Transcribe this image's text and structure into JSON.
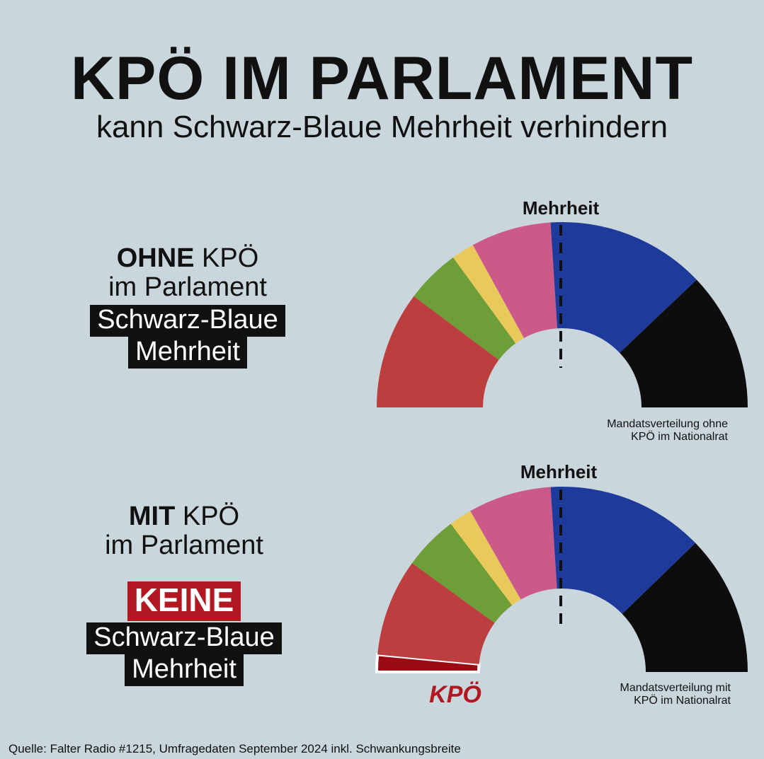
{
  "header": {
    "title": "KPÖ IM PARLAMENT",
    "subtitle": "kann Schwarz-Blaue Mehrheit verhindern"
  },
  "panel_top": {
    "line1_bold": "OHNE",
    "line1_rest": " KPÖ",
    "line2": "im Parlament",
    "box_line1": "Schwarz-Blaue",
    "box_line2": "Mehrheit",
    "majority_label": "Mehrheit",
    "caption_line1": "Mandatsverteilung ohne",
    "caption_line2": "KPÖ im Nationalrat"
  },
  "panel_bottom": {
    "line1_bold": "MIT",
    "line1_rest": " KPÖ",
    "line2": "im Parlament",
    "keine": "KEINE",
    "box_line1": "Schwarz-Blaue",
    "box_line2": "Mehrheit",
    "majority_label": "Mehrheit",
    "caption_line1": "Mandatsverteilung mit",
    "caption_line2": "KPÖ im Nationalrat",
    "kpo_label": "KPÖ"
  },
  "source": "Quelle: Falter Radio #1215, Umfragedaten September 2024 inkl. Schwankungsbreite",
  "colors": {
    "background": "#c9d6dc",
    "red": "#bd3e3e",
    "green": "#6e9e38",
    "yellow": "#e8c95a",
    "pink": "#cc5a88",
    "blue": "#1e3a9a",
    "black": "#0d0d0d",
    "kpo": "#9b0b14"
  },
  "chart_data": [
    {
      "type": "pie",
      "variant": "half-donut parliament",
      "title": "Mandatsverteilung ohne KPÖ im Nationalrat",
      "majority_marker": "Mehrheit",
      "series": [
        {
          "label": "red",
          "color": "#bd3e3e",
          "share": 0.205
        },
        {
          "label": "green",
          "color": "#6e9e38",
          "share": 0.095
        },
        {
          "label": "yellow",
          "color": "#e8c95a",
          "share": 0.04
        },
        {
          "label": "pink",
          "color": "#cc5a88",
          "share": 0.14
        },
        {
          "label": "blue",
          "color": "#1e3a9a",
          "share": 0.278
        },
        {
          "label": "black",
          "color": "#0d0d0d",
          "share": 0.242
        }
      ]
    },
    {
      "type": "pie",
      "variant": "half-donut parliament",
      "title": "Mandatsverteilung mit KPÖ im Nationalrat",
      "majority_marker": "Mehrheit",
      "series": [
        {
          "label": "KPÖ",
          "color": "#9b0b14",
          "share": 0.03
        },
        {
          "label": "red",
          "color": "#bd3e3e",
          "share": 0.17
        },
        {
          "label": "green",
          "color": "#6e9e38",
          "share": 0.095
        },
        {
          "label": "yellow",
          "color": "#e8c95a",
          "share": 0.04
        },
        {
          "label": "pink",
          "color": "#cc5a88",
          "share": 0.145
        },
        {
          "label": "blue",
          "color": "#1e3a9a",
          "share": 0.275
        },
        {
          "label": "black",
          "color": "#0d0d0d",
          "share": 0.245
        }
      ]
    }
  ]
}
